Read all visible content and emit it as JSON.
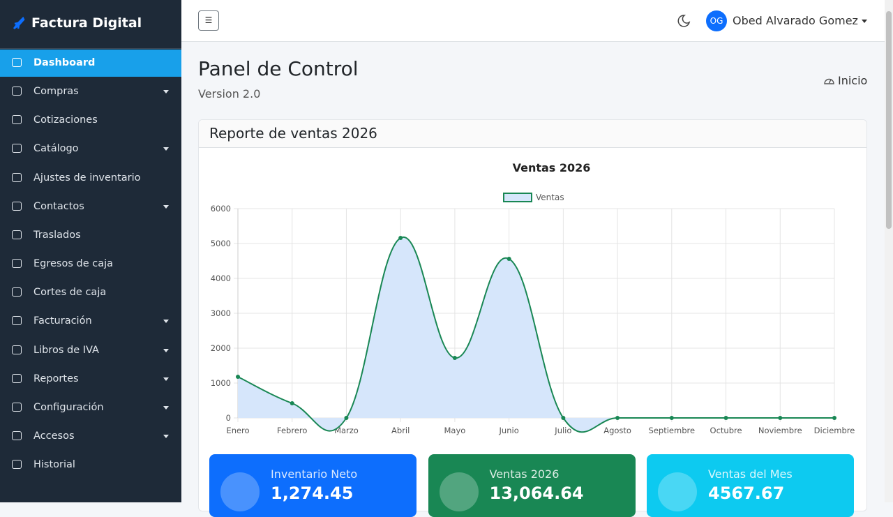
{
  "sidebar": {
    "brand": "Factura Digital",
    "items": [
      {
        "label": "Dashboard",
        "active": true,
        "submenu": false
      },
      {
        "label": "Compras",
        "active": false,
        "submenu": true
      },
      {
        "label": "Cotizaciones",
        "active": false,
        "submenu": false
      },
      {
        "label": "Catálogo",
        "active": false,
        "submenu": true
      },
      {
        "label": "Ajustes de inventario",
        "active": false,
        "submenu": false
      },
      {
        "label": "Contactos",
        "active": false,
        "submenu": true
      },
      {
        "label": "Traslados",
        "active": false,
        "submenu": false
      },
      {
        "label": "Egresos de caja",
        "active": false,
        "submenu": false
      },
      {
        "label": "Cortes de caja",
        "active": false,
        "submenu": false
      },
      {
        "label": "Facturación",
        "active": false,
        "submenu": true
      },
      {
        "label": "Libros de IVA",
        "active": false,
        "submenu": true
      },
      {
        "label": "Reportes",
        "active": false,
        "submenu": true
      },
      {
        "label": "Configuración",
        "active": false,
        "submenu": true
      },
      {
        "label": "Accesos",
        "active": false,
        "submenu": true
      },
      {
        "label": "Historial",
        "active": false,
        "submenu": false
      }
    ]
  },
  "topbar": {
    "initials": "OG",
    "user": "Obed Alvarado Gomez"
  },
  "header": {
    "title": "Panel de Control",
    "subtitle": "Version 2.0",
    "breadcrumb": "Inicio"
  },
  "card": {
    "title": "Reporte de ventas 2026"
  },
  "chart_data": {
    "type": "line",
    "title": "Ventas 2026",
    "categories": [
      "Enero",
      "Febrero",
      "Marzo",
      "Abril",
      "Mayo",
      "Junio",
      "Julio",
      "Agosto",
      "Septiembre",
      "Octubre",
      "Noviembre",
      "Diciembre"
    ],
    "series": [
      {
        "name": "Ventas",
        "color": "#198754",
        "fill": "#d6e6fb",
        "values": [
          1180,
          420,
          0,
          5160,
          1720,
          4560,
          0,
          0,
          0,
          0,
          0,
          0
        ]
      }
    ],
    "ylim": [
      0,
      6000
    ],
    "yticks": [
      0,
      1000,
      2000,
      3000,
      4000,
      5000,
      6000
    ],
    "grid": true,
    "legend": "top"
  },
  "info_boxes": [
    {
      "label": "Inventario Neto",
      "value": "1,274.45",
      "color": "#0d6efd"
    },
    {
      "label": "Ventas 2026",
      "value": "13,064.64",
      "color": "#198754"
    },
    {
      "label": "Ventas del Mes",
      "value": "4567.67",
      "color": "#0dcaf0"
    }
  ]
}
